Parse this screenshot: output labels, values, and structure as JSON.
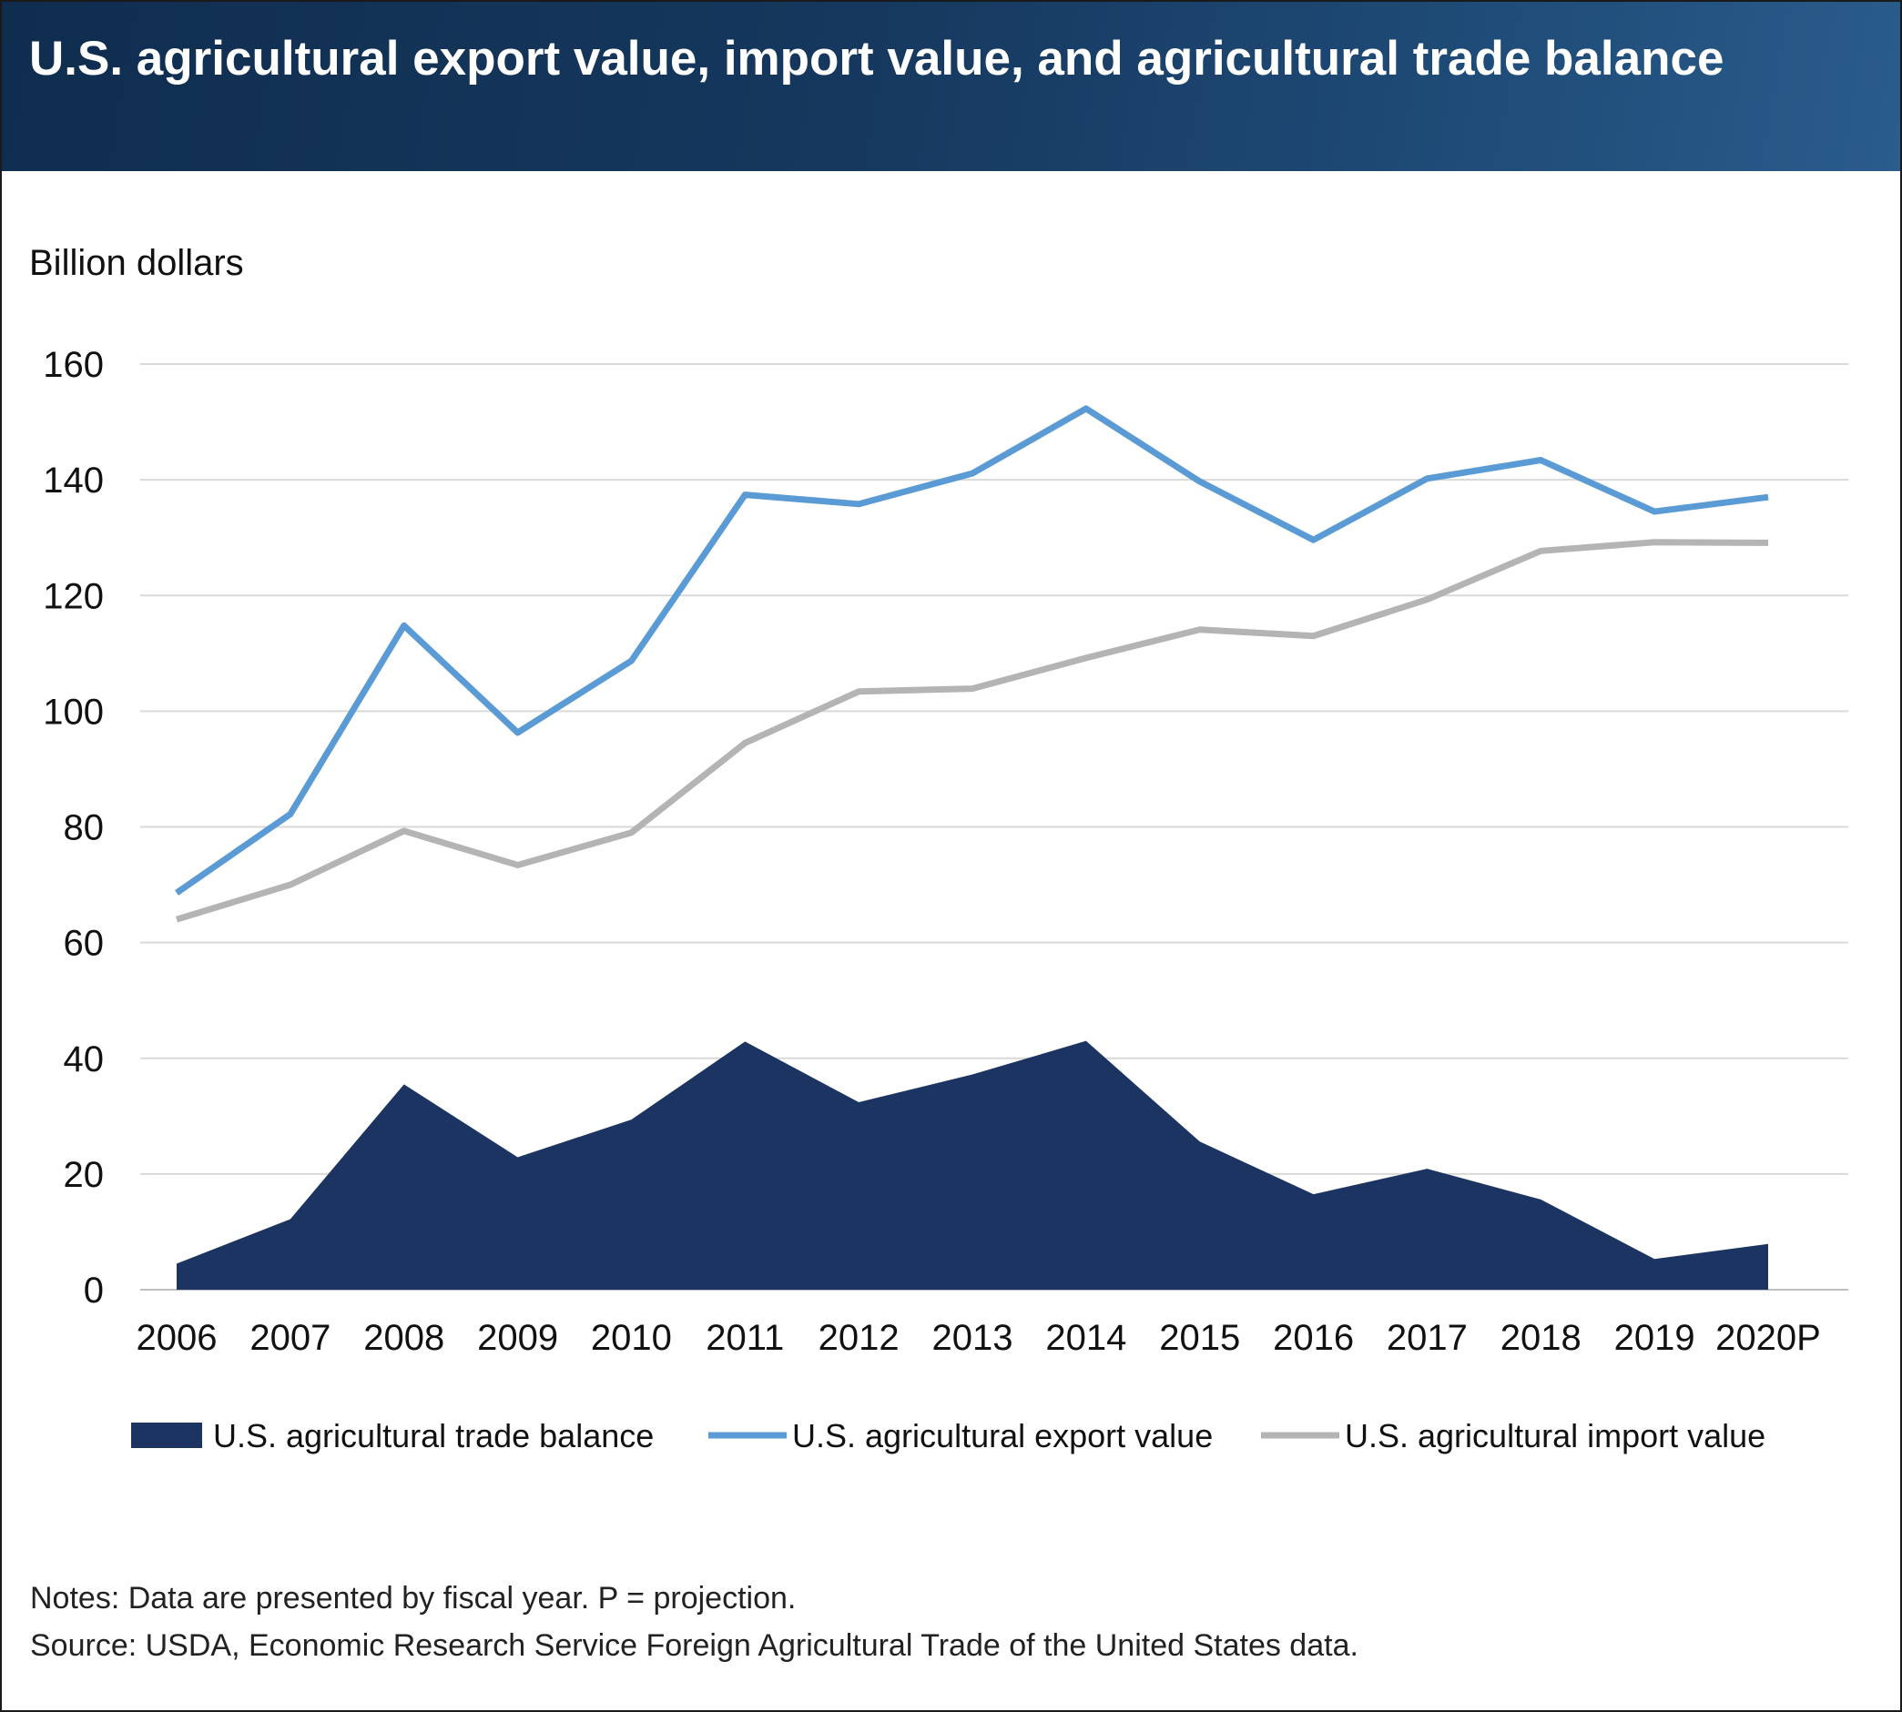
{
  "title": "U.S. agricultural export value, import value, and agricultural trade balance",
  "notes": "Notes: Data are presented by fiscal year. P = projection.",
  "source": "Source: USDA, Economic Research Service Foreign Agricultural Trade of the United States data.",
  "chart_data": {
    "type": "line",
    "ylabel": "Billion dollars",
    "xlabel": "",
    "ylim": [
      0,
      160
    ],
    "yticks": [
      0,
      20,
      40,
      60,
      80,
      100,
      120,
      140,
      160
    ],
    "grid": true,
    "legend_position": "bottom",
    "categories": [
      "2006",
      "2007",
      "2008",
      "2009",
      "2010",
      "2011",
      "2012",
      "2013",
      "2014",
      "2015",
      "2016",
      "2017",
      "2018",
      "2019",
      "2020P"
    ],
    "series": [
      {
        "name": "U.S. agricultural trade balance",
        "type": "area",
        "color": "#1b3461",
        "values": [
          4.5,
          12.2,
          35.5,
          22.9,
          29.4,
          42.9,
          32.4,
          37.2,
          43.0,
          25.6,
          16.5,
          20.9,
          15.6,
          5.3,
          7.9
        ]
      },
      {
        "name": "U.S. agricultural export value",
        "type": "line",
        "color": "#5b9bd5",
        "values": [
          68.6,
          82.2,
          114.8,
          96.3,
          108.7,
          137.4,
          135.8,
          141.1,
          152.3,
          139.7,
          129.6,
          140.2,
          143.4,
          134.5,
          137.0
        ]
      },
      {
        "name": "U.S. agricultural import value",
        "type": "line",
        "color": "#b4b4b4",
        "values": [
          64.0,
          70.0,
          79.3,
          73.4,
          79.0,
          94.5,
          103.4,
          103.9,
          109.2,
          114.1,
          113.0,
          119.3,
          127.7,
          129.2,
          129.1
        ]
      }
    ]
  }
}
